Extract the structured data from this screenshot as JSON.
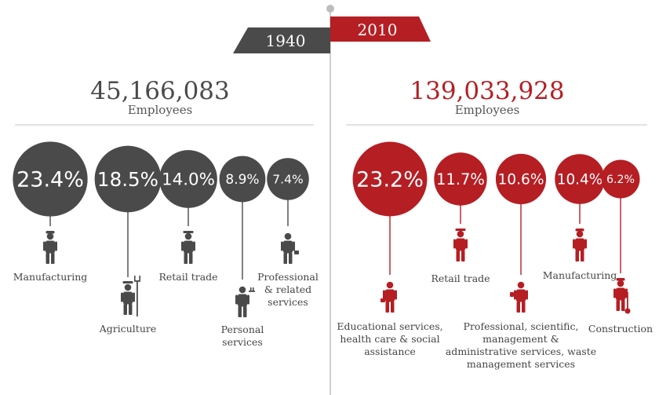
{
  "colors": {
    "dark": "#4a4a4a",
    "red": "#b51e23",
    "line": "#cfcfcf",
    "divider": "#d8d8d8"
  },
  "chart_data": [
    {
      "type": "bubble",
      "year": "1940",
      "total": "45,166,083",
      "total_label": "Employees",
      "color": "dark",
      "items": [
        {
          "category": "Manufacturing",
          "value": 23.4,
          "label": "23.4%",
          "icon": "worker-icon",
          "lines": [
            "Manufacturing"
          ]
        },
        {
          "category": "Agriculture",
          "value": 18.5,
          "label": "18.5%",
          "icon": "farmer-pitchfork-icon",
          "lines": [
            "Agriculture"
          ]
        },
        {
          "category": "Retail trade",
          "value": 14.0,
          "label": "14.0%",
          "icon": "retail-clerk-icon",
          "lines": [
            "Retail trade"
          ]
        },
        {
          "category": "Personal services",
          "value": 8.9,
          "label": "8.9%",
          "icon": "waiter-icon",
          "lines": [
            "Personal",
            "services"
          ]
        },
        {
          "category": "Professional & related services",
          "value": 7.4,
          "label": "7.4%",
          "icon": "businessman-icon",
          "lines": [
            "Professional",
            "& related",
            "services"
          ]
        }
      ]
    },
    {
      "type": "bubble",
      "year": "2010",
      "total": "139,033,928",
      "total_label": "Employees",
      "color": "red",
      "items": [
        {
          "category": "Educational services, health care & social assistance",
          "value": 23.2,
          "label": "23.2%",
          "icon": "nurse-icon",
          "lines": [
            "Educational services,",
            "health care & social",
            "assistance"
          ]
        },
        {
          "category": "Retail trade",
          "value": 11.7,
          "label": "11.7%",
          "icon": "retail-clerk-icon",
          "lines": [
            "Retail trade"
          ]
        },
        {
          "category": "Professional, scientific, management & administrative services, waste management services",
          "value": 10.6,
          "label": "10.6%",
          "icon": "scientist-icon",
          "lines": [
            "Professional, scientific,",
            "management &",
            "administrative services, waste",
            "management services"
          ]
        },
        {
          "category": "Manufacturing",
          "value": 10.4,
          "label": "10.4%",
          "icon": "worker-icon",
          "lines": [
            "Manufacturing"
          ]
        },
        {
          "category": "Construction",
          "value": 6.2,
          "label": "6.2%",
          "icon": "construction-worker-icon",
          "lines": [
            "Construction"
          ]
        }
      ]
    }
  ]
}
